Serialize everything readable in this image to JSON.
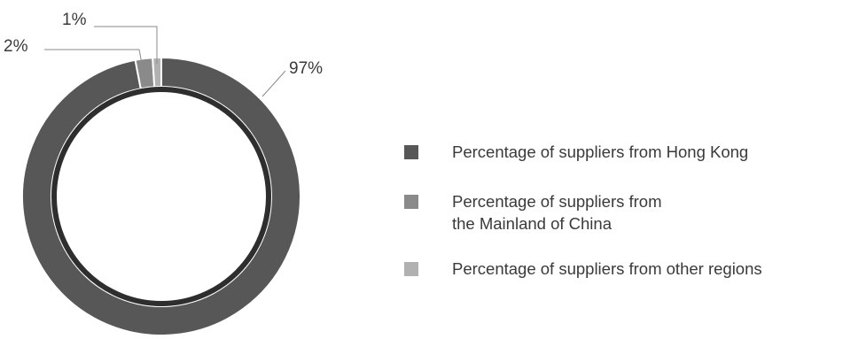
{
  "colors": {
    "hong_kong": "#575757",
    "mainland": "#8a8a8a",
    "other": "#b1b1b1",
    "inner_ring": "#2e2e2e"
  },
  "chart_data": {
    "type": "pie",
    "style": "donut",
    "title": "",
    "categories": [
      "Percentage of suppliers from Hong Kong",
      "Percentage of suppliers from the Mainland of China",
      "Percentage of suppliers from other regions"
    ],
    "values": [
      97,
      2,
      1
    ],
    "data_labels": [
      "97%",
      "2%",
      "1%"
    ],
    "legend_position": "right"
  },
  "legend": {
    "items": [
      {
        "lines": [
          "Percentage of suppliers from Hong Kong"
        ]
      },
      {
        "lines": [
          "Percentage of suppliers from",
          "the Mainland of China"
        ]
      },
      {
        "lines": [
          "Percentage of suppliers from other regions"
        ]
      }
    ]
  }
}
